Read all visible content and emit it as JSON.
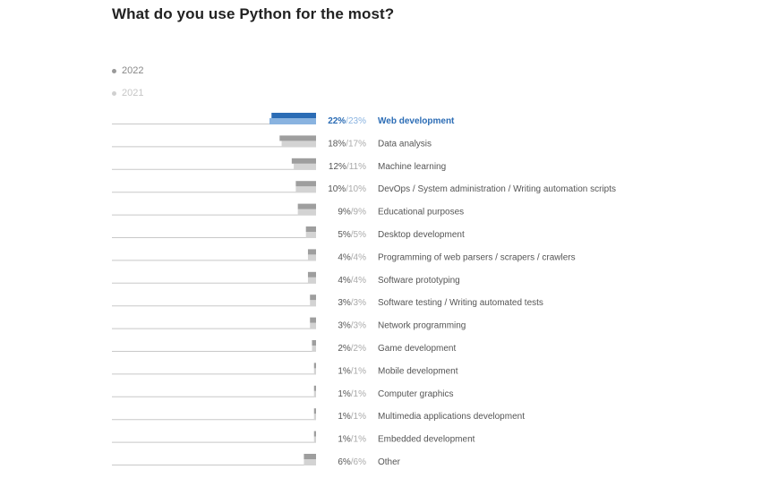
{
  "title": "What do you use Python for the most?",
  "legend": [
    {
      "label": "2022",
      "color": "#999999"
    },
    {
      "label": "2021",
      "color": "#d0d0d0"
    }
  ],
  "colors": {
    "highlight_2022": "#2b6cb5",
    "highlight_2021": "#89b3e0",
    "bar_2022": "#9e9e9e",
    "bar_2021": "#d3d3d3",
    "baseline": "#c8c8c8",
    "highlight_text": "#2b6cb5",
    "text": "#555555",
    "muted_text": "#aaaaaa"
  },
  "chart_data": {
    "type": "bar",
    "orientation": "horizontal",
    "title": "What do you use Python for the most?",
    "categories": [
      "Web development",
      "Data analysis",
      "Machine learning",
      "DevOps / System administration / Writing automation scripts",
      "Educational purposes",
      "Desktop development",
      "Programming of web parsers / scrapers / crawlers",
      "Software prototyping",
      "Software testing / Writing automated tests",
      "Network programming",
      "Game development",
      "Mobile development",
      "Computer graphics",
      "Multimedia applications development",
      "Embedded development",
      "Other"
    ],
    "series": [
      {
        "name": "2022",
        "values": [
          22,
          18,
          12,
          10,
          9,
          5,
          4,
          4,
          3,
          3,
          2,
          1,
          1,
          1,
          1,
          6
        ]
      },
      {
        "name": "2021",
        "values": [
          23,
          17,
          11,
          10,
          9,
          5,
          4,
          4,
          3,
          3,
          2,
          1,
          1,
          1,
          1,
          6
        ]
      }
    ],
    "value_labels_2022": [
      "22%",
      "18%",
      "12%",
      "10%",
      "9%",
      "5%",
      "4%",
      "4%",
      "3%",
      "3%",
      "2%",
      "1%",
      "1%",
      "1%",
      "1%",
      "6%"
    ],
    "value_labels_2021": [
      "23%",
      "17%",
      "11%",
      "10%",
      "9%",
      "5%",
      "4%",
      "4%",
      "3%",
      "3%",
      "2%",
      "1%",
      "1%",
      "1%",
      "1%",
      "6%"
    ],
    "separator": "/",
    "highlighted_category": "Web development",
    "xlim": [
      0,
      23
    ],
    "legend_position": "top-left",
    "grid": false
  }
}
